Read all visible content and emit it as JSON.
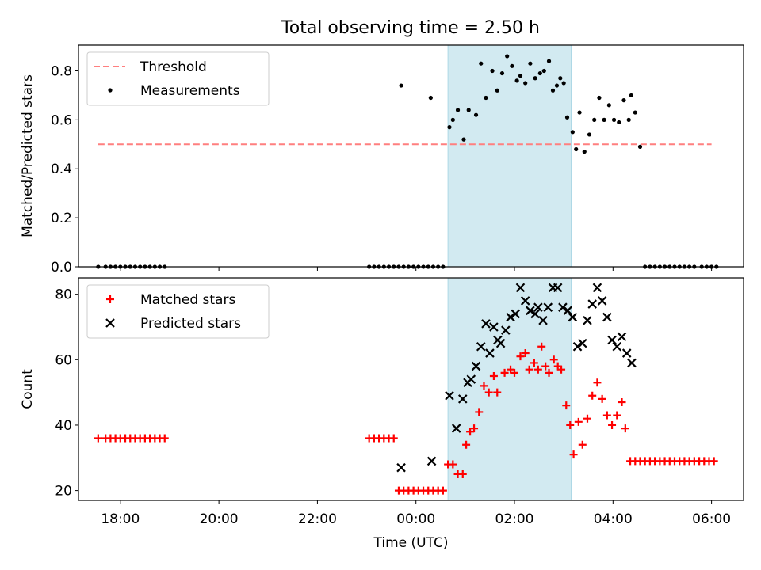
{
  "title": "Total observing time = 2.50 h",
  "colors": {
    "threshold": "#ff7f7f",
    "measurements": "#000000",
    "matched": "#ff0000",
    "predicted": "#000000",
    "window": "#add8e6"
  },
  "chart_data": [
    {
      "type": "scatter",
      "panel": "top",
      "ylabel": "Matched/Predicted stars",
      "xlabel": "",
      "xlim": [
        -6.85,
        6.65
      ],
      "ylim": [
        0,
        0.905
      ],
      "yticks": [
        0.0,
        0.2,
        0.4,
        0.6,
        0.8
      ],
      "ytick_labels": [
        "0.0",
        "0.2",
        "0.4",
        "0.6",
        "0.8"
      ],
      "xticks": [
        -6,
        -4,
        -2,
        0,
        2,
        4,
        6
      ],
      "x_units": "hours relative to 00:00 UTC",
      "observing_window": [
        0.65,
        3.15
      ],
      "legend": {
        "position": "upper-left",
        "entries": [
          "Threshold",
          "Measurements"
        ]
      },
      "threshold": {
        "name": "Threshold",
        "y": 0.5,
        "x": [
          -6.45,
          6.0
        ]
      },
      "series": [
        {
          "name": "Measurements",
          "marker": "dot",
          "x": [
            -6.45,
            -6.3,
            -6.2,
            -6.1,
            -6.0,
            -5.9,
            -5.8,
            -5.7,
            -5.6,
            -5.5,
            -5.4,
            -5.3,
            -5.2,
            -5.1,
            -0.95,
            -0.85,
            -0.75,
            -0.65,
            -0.55,
            -0.45,
            -0.35,
            -0.25,
            -0.15,
            -0.05,
            0.05,
            0.15,
            0.25,
            0.35,
            0.45,
            0.55,
            -0.3,
            0.3,
            0.68,
            0.75,
            0.85,
            0.97,
            1.07,
            1.22,
            1.32,
            1.42,
            1.55,
            1.65,
            1.75,
            1.85,
            1.95,
            2.05,
            2.12,
            2.22,
            2.32,
            2.42,
            2.52,
            2.6,
            2.7,
            2.78,
            2.86,
            2.93,
            3.0,
            3.07,
            3.18,
            3.25,
            3.32,
            3.42,
            3.52,
            3.62,
            3.72,
            3.82,
            3.92,
            4.02,
            4.12,
            4.22,
            4.32,
            4.37,
            4.45,
            4.55,
            4.65,
            4.75,
            4.85,
            4.95,
            5.05,
            5.15,
            5.25,
            5.35,
            5.45,
            5.55,
            5.65,
            5.8,
            5.9,
            6.0,
            6.1
          ],
          "y": [
            0,
            0,
            0,
            0,
            0,
            0,
            0,
            0,
            0,
            0,
            0,
            0,
            0,
            0,
            0,
            0,
            0,
            0,
            0,
            0,
            0,
            0,
            0,
            0,
            0,
            0,
            0,
            0,
            0,
            0,
            0.74,
            0.69,
            0.57,
            0.6,
            0.64,
            0.52,
            0.64,
            0.62,
            0.83,
            0.69,
            0.8,
            0.72,
            0.79,
            0.86,
            0.82,
            0.76,
            0.78,
            0.75,
            0.83,
            0.77,
            0.79,
            0.8,
            0.84,
            0.72,
            0.74,
            0.77,
            0.75,
            0.61,
            0.55,
            0.48,
            0.63,
            0.47,
            0.54,
            0.6,
            0.69,
            0.6,
            0.66,
            0.6,
            0.59,
            0.68,
            0.6,
            0.7,
            0.63,
            0.49,
            0,
            0,
            0,
            0,
            0,
            0,
            0,
            0,
            0,
            0,
            0,
            0,
            0,
            0,
            0
          ]
        }
      ]
    },
    {
      "type": "scatter",
      "panel": "bottom",
      "ylabel": "Count",
      "xlabel": "Time (UTC)",
      "xlim": [
        -6.85,
        6.65
      ],
      "ylim": [
        17,
        85
      ],
      "yticks": [
        20,
        40,
        60,
        80
      ],
      "ytick_labels": [
        "20",
        "40",
        "60",
        "80"
      ],
      "xticks": [
        -6,
        -4,
        -2,
        0,
        2,
        4,
        6
      ],
      "xtick_labels": [
        "18:00",
        "20:00",
        "22:00",
        "00:00",
        "02:00",
        "04:00",
        "06:00"
      ],
      "x_units": "hours relative to 00:00 UTC",
      "observing_window": [
        0.65,
        3.15
      ],
      "legend": {
        "position": "upper-left",
        "entries": [
          "Matched stars",
          "Predicted stars"
        ]
      },
      "series": [
        {
          "name": "Matched stars",
          "marker": "plus",
          "x": [
            -6.45,
            -6.3,
            -6.2,
            -6.1,
            -6.0,
            -5.9,
            -5.8,
            -5.7,
            -5.6,
            -5.5,
            -5.4,
            -5.3,
            -5.2,
            -5.1,
            -0.95,
            -0.85,
            -0.75,
            -0.65,
            -0.55,
            -0.45,
            -0.35,
            -0.25,
            -0.15,
            -0.05,
            0.05,
            0.15,
            0.25,
            0.35,
            0.45,
            0.55,
            0.65,
            0.75,
            0.85,
            0.95,
            1.02,
            1.1,
            1.18,
            1.28,
            1.38,
            1.48,
            1.58,
            1.65,
            1.8,
            1.92,
            2.0,
            2.12,
            2.22,
            2.3,
            2.4,
            2.48,
            2.55,
            2.63,
            2.7,
            2.8,
            2.88,
            2.95,
            3.05,
            3.13,
            3.2,
            3.3,
            3.38,
            3.48,
            3.58,
            3.68,
            3.78,
            3.88,
            3.98,
            4.08,
            4.18,
            4.25,
            4.35,
            4.45,
            4.55,
            4.65,
            4.75,
            4.85,
            4.95,
            5.05,
            5.15,
            5.25,
            5.35,
            5.45,
            5.55,
            5.65,
            5.75,
            5.85,
            5.95,
            6.05
          ],
          "y": [
            36,
            36,
            36,
            36,
            36,
            36,
            36,
            36,
            36,
            36,
            36,
            36,
            36,
            36,
            36,
            36,
            36,
            36,
            36,
            36,
            20,
            20,
            20,
            20,
            20,
            20,
            20,
            20,
            20,
            20,
            28,
            28,
            25,
            25,
            34,
            38,
            39,
            44,
            52,
            50,
            55,
            50,
            56,
            57,
            56,
            61,
            62,
            57,
            59,
            57,
            64,
            58,
            56,
            60,
            58,
            57,
            46,
            40,
            31,
            41,
            34,
            42,
            49,
            53,
            48,
            43,
            40,
            43,
            47,
            39,
            29,
            29,
            29,
            29,
            29,
            29,
            29,
            29,
            29,
            29,
            29,
            29,
            29,
            29,
            29,
            29,
            29,
            29
          ]
        },
        {
          "name": "Predicted stars",
          "marker": "x",
          "x": [
            -0.3,
            0.32,
            0.68,
            0.82,
            0.95,
            1.05,
            1.12,
            1.22,
            1.32,
            1.42,
            1.5,
            1.58,
            1.66,
            1.72,
            1.82,
            1.92,
            2.02,
            2.12,
            2.22,
            2.32,
            2.42,
            2.48,
            2.58,
            2.68,
            2.78,
            2.88,
            2.98,
            3.08,
            3.18,
            3.28,
            3.38,
            3.48,
            3.58,
            3.68,
            3.78,
            3.88,
            3.98,
            4.08,
            4.18,
            4.28,
            4.38
          ],
          "y": [
            27,
            29,
            49,
            39,
            48,
            53,
            54,
            58,
            64,
            71,
            62,
            70,
            66,
            65,
            69,
            73,
            74,
            82,
            78,
            75,
            74,
            76,
            72,
            76,
            82,
            82,
            76,
            75,
            73,
            64,
            65,
            72,
            77,
            82,
            78,
            73,
            66,
            64,
            67,
            62,
            59
          ]
        }
      ]
    }
  ]
}
